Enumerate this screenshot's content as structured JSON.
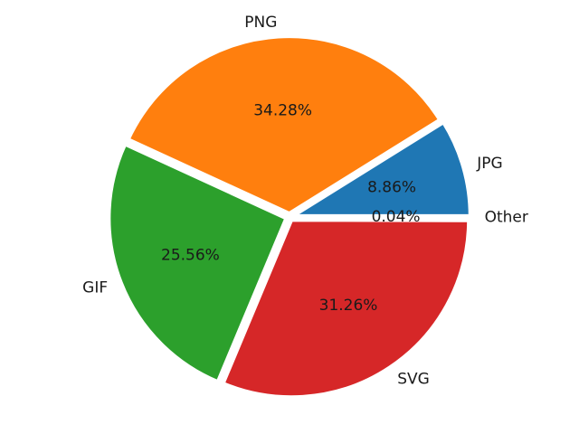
{
  "chart_data": {
    "type": "pie",
    "title": "",
    "start_angle_deg": 0,
    "direction": "counterclockwise",
    "slices": [
      {
        "label": "JPG",
        "value": 8.86,
        "pct_label": "8.86%",
        "color": "#1f77b4"
      },
      {
        "label": "PNG",
        "value": 34.28,
        "pct_label": "34.28%",
        "color": "#ff7f0e"
      },
      {
        "label": "GIF",
        "value": 25.56,
        "pct_label": "25.56%",
        "color": "#2ca02c"
      },
      {
        "label": "SVG",
        "value": 31.26,
        "pct_label": "31.26%",
        "color": "#d62728"
      },
      {
        "label": "Other",
        "value": 0.04,
        "pct_label": "0.04%",
        "color": "#9467bd"
      }
    ]
  }
}
